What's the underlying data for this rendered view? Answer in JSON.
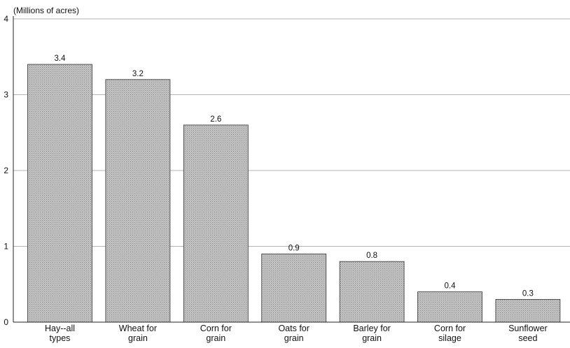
{
  "chart_data": {
    "type": "bar",
    "title": "",
    "xlabel": "",
    "ylabel": "(Millions of acres)",
    "ylim": [
      0,
      4
    ],
    "yticks": [
      0,
      1,
      2,
      3,
      4
    ],
    "grid": true,
    "legend": "none",
    "categories": [
      [
        "Hay--all",
        "types"
      ],
      [
        "Wheat for",
        "grain"
      ],
      [
        "Corn for",
        "grain"
      ],
      [
        "Oats for",
        "grain"
      ],
      [
        "Barley for",
        "grain"
      ],
      [
        "Corn for",
        "silage"
      ],
      [
        "Sunflower",
        "seed"
      ]
    ],
    "values": [
      3.4,
      3.2,
      2.6,
      0.9,
      0.8,
      0.4,
      0.3
    ],
    "value_labels": [
      "3.4",
      "3.2",
      "2.6",
      "0.9",
      "0.8",
      "0.4",
      "0.3"
    ],
    "colors": {
      "bar_fill": "#bdbdbd",
      "bar_pattern": "#8f8f8f",
      "grid": "#9a9a9a",
      "text": "#111111"
    }
  }
}
